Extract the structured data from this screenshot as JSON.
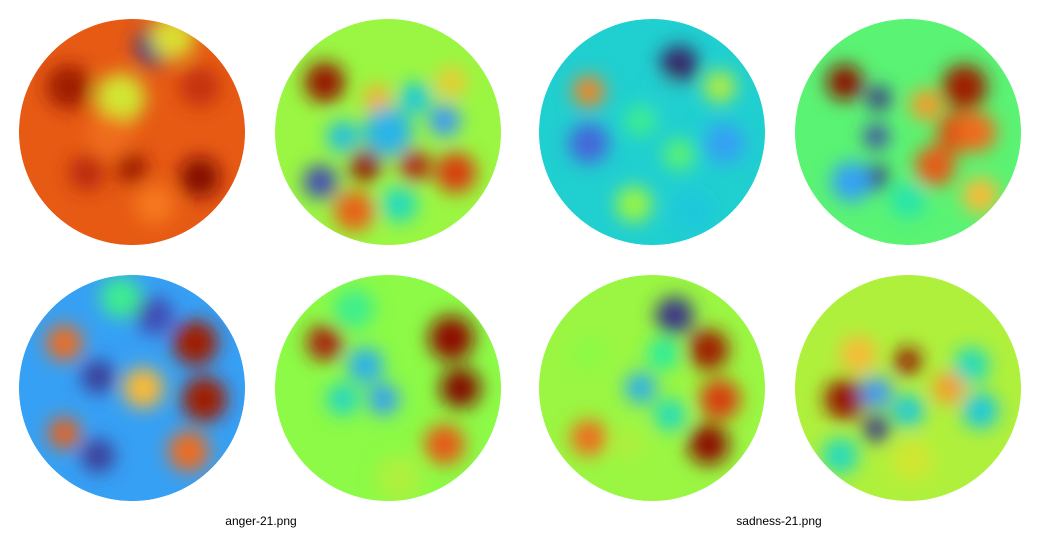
{
  "panels": [
    {
      "caption": "anger-21.png",
      "maps": [
        {
          "base": 0.85,
          "blobs": [
            [
              0.6,
              0.12,
              0.05,
              0.085
            ],
            [
              0.22,
              0.3,
              0.96,
              0.1
            ],
            [
              0.8,
              0.3,
              0.92,
              0.09
            ],
            [
              0.45,
              0.35,
              0.6,
              0.11
            ],
            [
              0.68,
              0.08,
              0.62,
              0.1
            ],
            [
              0.5,
              0.66,
              0.96,
              0.07
            ],
            [
              0.8,
              0.7,
              0.99,
              0.09
            ],
            [
              0.3,
              0.68,
              0.93,
              0.08
            ],
            [
              0.6,
              0.82,
              0.8,
              0.09
            ],
            [
              0.4,
              0.52,
              0.82,
              0.1
            ]
          ]
        },
        {
          "base": 0.52,
          "blobs": [
            [
              0.22,
              0.28,
              0.97,
              0.09
            ],
            [
              0.2,
              0.72,
              0.08,
              0.075
            ],
            [
              0.45,
              0.35,
              0.72,
              0.06
            ],
            [
              0.62,
              0.35,
              0.3,
              0.07
            ],
            [
              0.75,
              0.45,
              0.2,
              0.07
            ],
            [
              0.5,
              0.5,
              0.26,
              0.11
            ],
            [
              0.4,
              0.65,
              0.97,
              0.07
            ],
            [
              0.62,
              0.65,
              0.94,
              0.07
            ],
            [
              0.8,
              0.68,
              0.9,
              0.09
            ],
            [
              0.55,
              0.82,
              0.35,
              0.08
            ],
            [
              0.35,
              0.85,
              0.84,
              0.09
            ],
            [
              0.78,
              0.28,
              0.66,
              0.07
            ],
            [
              0.3,
              0.52,
              0.28,
              0.07
            ]
          ]
        },
        {
          "base": 0.22,
          "blobs": [
            [
              0.6,
              0.18,
              0.08,
              0.085
            ],
            [
              0.35,
              0.45,
              0.06,
              0.075
            ],
            [
              0.2,
              0.3,
              0.82,
              0.08
            ],
            [
              0.35,
              0.8,
              0.06,
              0.075
            ],
            [
              0.2,
              0.7,
              0.84,
              0.07
            ],
            [
              0.45,
              0.1,
              0.42,
              0.09
            ],
            [
              0.78,
              0.3,
              0.96,
              0.1
            ],
            [
              0.82,
              0.55,
              0.96,
              0.1
            ],
            [
              0.75,
              0.78,
              0.82,
              0.09
            ],
            [
              0.55,
              0.5,
              0.7,
              0.09
            ]
          ]
        },
        {
          "base": 0.5,
          "blobs": [
            [
              0.78,
              0.28,
              0.98,
              0.1
            ],
            [
              0.82,
              0.5,
              0.99,
              0.09
            ],
            [
              0.75,
              0.75,
              0.85,
              0.09
            ],
            [
              0.22,
              0.3,
              0.95,
              0.08
            ],
            [
              0.4,
              0.4,
              0.25,
              0.08
            ],
            [
              0.48,
              0.55,
              0.22,
              0.07
            ],
            [
              0.3,
              0.55,
              0.34,
              0.07
            ],
            [
              0.35,
              0.15,
              0.42,
              0.09
            ],
            [
              0.55,
              0.9,
              0.55,
              0.1
            ]
          ]
        }
      ]
    },
    {
      "caption": "sadness-21.png",
      "maps": [
        {
          "base": 0.32,
          "blobs": [
            [
              0.62,
              0.2,
              0.03,
              0.085
            ],
            [
              0.22,
              0.55,
              0.12,
              0.09
            ],
            [
              0.82,
              0.55,
              0.22,
              0.09
            ],
            [
              0.22,
              0.32,
              0.78,
              0.07
            ],
            [
              0.45,
              0.45,
              0.42,
              0.07
            ],
            [
              0.62,
              0.6,
              0.45,
              0.07
            ],
            [
              0.42,
              0.82,
              0.52,
              0.08
            ],
            [
              0.68,
              0.85,
              0.3,
              0.09
            ],
            [
              0.8,
              0.3,
              0.56,
              0.07
            ],
            [
              0.55,
              0.35,
              0.32,
              0.08
            ]
          ]
        },
        {
          "base": 0.55,
          "blobs": [
            [
              0.22,
              0.55,
              0.97,
              0.09
            ],
            [
              0.5,
              0.38,
              0.97,
              0.06
            ],
            [
              0.36,
              0.52,
              0.2,
              0.07
            ],
            [
              0.36,
              0.68,
              0.05,
              0.06
            ],
            [
              0.5,
              0.6,
              0.3,
              0.07
            ],
            [
              0.68,
              0.5,
              0.75,
              0.07
            ],
            [
              0.78,
              0.4,
              0.35,
              0.08
            ],
            [
              0.82,
              0.6,
              0.3,
              0.08
            ],
            [
              0.28,
              0.35,
              0.7,
              0.08
            ],
            [
              0.52,
              0.82,
              0.6,
              0.09
            ],
            [
              0.2,
              0.8,
              0.35,
              0.08
            ]
          ]
        },
        {
          "base": 0.52,
          "blobs": [
            [
              0.6,
              0.18,
              0.05,
              0.085
            ],
            [
              0.75,
              0.33,
              0.96,
              0.09
            ],
            [
              0.8,
              0.55,
              0.9,
              0.09
            ],
            [
              0.75,
              0.75,
              0.98,
              0.09
            ],
            [
              0.45,
              0.5,
              0.25,
              0.07
            ],
            [
              0.58,
              0.62,
              0.35,
              0.07
            ],
            [
              0.22,
              0.72,
              0.82,
              0.08
            ],
            [
              0.4,
              0.75,
              0.55,
              0.07
            ],
            [
              0.22,
              0.35,
              0.5,
              0.08
            ],
            [
              0.55,
              0.35,
              0.4,
              0.07
            ]
          ]
        },
        {
          "base": 0.45,
          "blobs": [
            [
              0.22,
              0.28,
              0.98,
              0.08
            ],
            [
              0.37,
              0.35,
              0.05,
              0.055
            ],
            [
              0.36,
              0.52,
              0.07,
              0.055
            ],
            [
              0.36,
              0.7,
              0.04,
              0.055
            ],
            [
              0.75,
              0.3,
              0.96,
              0.1
            ],
            [
              0.72,
              0.5,
              0.88,
              0.09
            ],
            [
              0.8,
              0.5,
              0.82,
              0.09
            ],
            [
              0.62,
              0.65,
              0.85,
              0.09
            ],
            [
              0.25,
              0.72,
              0.22,
              0.09
            ],
            [
              0.5,
              0.8,
              0.38,
              0.08
            ],
            [
              0.58,
              0.38,
              0.75,
              0.07
            ],
            [
              0.82,
              0.78,
              0.7,
              0.08
            ]
          ]
        }
      ]
    }
  ]
}
